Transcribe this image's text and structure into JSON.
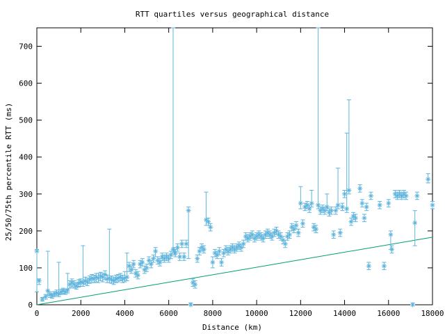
{
  "chart_data": {
    "type": "scatter",
    "title": "RTT quartiles versus geographical distance",
    "xlabel": "Distance (km)",
    "ylabel": "25/50/75th percentile RTT (ms)",
    "xlim": [
      0,
      18000
    ],
    "ylim": [
      0,
      750
    ],
    "x_ticks": [
      0,
      2000,
      4000,
      6000,
      8000,
      10000,
      12000,
      14000,
      16000,
      18000
    ],
    "y_ticks": [
      0,
      100,
      200,
      300,
      400,
      500,
      600,
      700
    ],
    "grid": false,
    "legend": "none",
    "colors": {
      "points": "#5fb4dd",
      "reference_line": "#009e73"
    },
    "reference_line": {
      "x": [
        0,
        18000
      ],
      "y": [
        0,
        183
      ]
    },
    "series": [
      {
        "marker": "star",
        "points": [
          [
            0,
            145,
            35,
            150
          ],
          [
            100,
            65,
            55,
            70
          ],
          [
            250,
            15,
            10,
            20
          ],
          [
            400,
            22,
            15,
            28
          ],
          [
            500,
            38,
            25,
            145
          ],
          [
            600,
            28,
            20,
            35
          ],
          [
            700,
            25,
            18,
            30
          ],
          [
            800,
            30,
            22,
            36
          ],
          [
            900,
            32,
            25,
            40
          ],
          [
            1000,
            30,
            22,
            115
          ],
          [
            1100,
            35,
            28,
            42
          ],
          [
            1200,
            38,
            30,
            45
          ],
          [
            1300,
            35,
            28,
            42
          ],
          [
            1400,
            40,
            32,
            85
          ],
          [
            1500,
            55,
            45,
            65
          ],
          [
            1600,
            60,
            48,
            70
          ],
          [
            1700,
            55,
            45,
            65
          ],
          [
            1800,
            50,
            42,
            60
          ],
          [
            1900,
            58,
            48,
            68
          ],
          [
            2000,
            62,
            50,
            70
          ],
          [
            2100,
            60,
            50,
            160
          ],
          [
            2200,
            65,
            55,
            75
          ],
          [
            2300,
            62,
            52,
            72
          ],
          [
            2400,
            68,
            58,
            78
          ],
          [
            2500,
            72,
            60,
            82
          ],
          [
            2600,
            70,
            60,
            80
          ],
          [
            2700,
            75,
            62,
            85
          ],
          [
            2800,
            72,
            60,
            85
          ],
          [
            2900,
            78,
            65,
            88
          ],
          [
            3000,
            75,
            62,
            85
          ],
          [
            3100,
            82,
            68,
            92
          ],
          [
            3200,
            70,
            60,
            80
          ],
          [
            3300,
            72,
            60,
            205
          ],
          [
            3400,
            68,
            58,
            78
          ],
          [
            3500,
            65,
            55,
            75
          ],
          [
            3600,
            70,
            60,
            80
          ],
          [
            3700,
            72,
            62,
            82
          ],
          [
            3800,
            75,
            65,
            85
          ],
          [
            3900,
            70,
            60,
            80
          ],
          [
            4000,
            72,
            62,
            90
          ],
          [
            4100,
            75,
            65,
            140
          ],
          [
            4200,
            105,
            90,
            115
          ],
          [
            4300,
            95,
            85,
            105
          ],
          [
            4400,
            110,
            100,
            120
          ],
          [
            4500,
            85,
            75,
            95
          ],
          [
            4600,
            80,
            70,
            90
          ],
          [
            4700,
            110,
            100,
            120
          ],
          [
            4800,
            115,
            105,
            125
          ],
          [
            4900,
            95,
            85,
            105
          ],
          [
            5000,
            100,
            90,
            110
          ],
          [
            5100,
            120,
            110,
            130
          ],
          [
            5200,
            110,
            100,
            120
          ],
          [
            5300,
            125,
            115,
            135
          ],
          [
            5400,
            145,
            130,
            155
          ],
          [
            5500,
            120,
            110,
            130
          ],
          [
            5600,
            115,
            105,
            125
          ],
          [
            5700,
            130,
            120,
            140
          ],
          [
            5800,
            125,
            115,
            135
          ],
          [
            5900,
            130,
            120,
            140
          ],
          [
            6000,
            125,
            115,
            135
          ],
          [
            6100,
            135,
            125,
            145
          ],
          [
            6200,
            150,
            140,
            750
          ],
          [
            6250,
            145,
            135,
            155
          ],
          [
            6300,
            140,
            130,
            150
          ],
          [
            6400,
            155,
            145,
            165
          ],
          [
            6500,
            130,
            120,
            140
          ],
          [
            6600,
            165,
            155,
            175
          ],
          [
            6700,
            130,
            120,
            140
          ],
          [
            6800,
            165,
            155,
            175
          ],
          [
            6900,
            255,
            125,
            265
          ],
          [
            7000,
            0,
            0,
            5
          ],
          [
            7100,
            60,
            50,
            70
          ],
          [
            7200,
            55,
            45,
            65
          ],
          [
            7300,
            125,
            115,
            135
          ],
          [
            7400,
            145,
            135,
            155
          ],
          [
            7500,
            155,
            145,
            165
          ],
          [
            7600,
            150,
            140,
            160
          ],
          [
            7700,
            230,
            215,
            305
          ],
          [
            7800,
            225,
            215,
            235
          ],
          [
            7900,
            210,
            200,
            220
          ],
          [
            8000,
            115,
            100,
            130
          ],
          [
            8100,
            140,
            130,
            150
          ],
          [
            8200,
            135,
            125,
            145
          ],
          [
            8300,
            145,
            135,
            155
          ],
          [
            8400,
            115,
            105,
            125
          ],
          [
            8500,
            140,
            130,
            150
          ],
          [
            8600,
            150,
            140,
            160
          ],
          [
            8700,
            145,
            135,
            155
          ],
          [
            8800,
            150,
            140,
            160
          ],
          [
            8900,
            155,
            145,
            165
          ],
          [
            9000,
            150,
            140,
            160
          ],
          [
            9100,
            155,
            145,
            165
          ],
          [
            9200,
            160,
            150,
            170
          ],
          [
            9300,
            155,
            145,
            165
          ],
          [
            9400,
            165,
            155,
            175
          ],
          [
            9500,
            185,
            175,
            195
          ],
          [
            9600,
            180,
            170,
            190
          ],
          [
            9700,
            185,
            175,
            195
          ],
          [
            9800,
            190,
            180,
            200
          ],
          [
            9900,
            180,
            170,
            190
          ],
          [
            10000,
            185,
            175,
            195
          ],
          [
            10100,
            190,
            180,
            200
          ],
          [
            10200,
            185,
            175,
            195
          ],
          [
            10300,
            180,
            170,
            190
          ],
          [
            10400,
            190,
            180,
            200
          ],
          [
            10500,
            195,
            185,
            205
          ],
          [
            10600,
            190,
            180,
            200
          ],
          [
            10700,
            185,
            175,
            195
          ],
          [
            10800,
            195,
            185,
            205
          ],
          [
            10900,
            200,
            190,
            210
          ],
          [
            11000,
            190,
            180,
            200
          ],
          [
            11100,
            185,
            175,
            195
          ],
          [
            11200,
            175,
            165,
            185
          ],
          [
            11300,
            165,
            155,
            175
          ],
          [
            11400,
            185,
            175,
            195
          ],
          [
            11500,
            190,
            180,
            200
          ],
          [
            11600,
            210,
            200,
            220
          ],
          [
            11700,
            205,
            195,
            215
          ],
          [
            11800,
            215,
            205,
            225
          ],
          [
            11900,
            195,
            185,
            205
          ],
          [
            12000,
            275,
            260,
            320
          ],
          [
            12100,
            220,
            210,
            230
          ],
          [
            12200,
            265,
            255,
            275
          ],
          [
            12300,
            270,
            260,
            280
          ],
          [
            12400,
            260,
            250,
            270
          ],
          [
            12500,
            275,
            265,
            310
          ],
          [
            12600,
            210,
            200,
            220
          ],
          [
            12700,
            205,
            195,
            215
          ],
          [
            12800,
            270,
            260,
            750
          ],
          [
            12900,
            255,
            245,
            265
          ],
          [
            13000,
            260,
            250,
            270
          ],
          [
            13100,
            255,
            245,
            265
          ],
          [
            13200,
            265,
            255,
            300
          ],
          [
            13300,
            250,
            240,
            260
          ],
          [
            13400,
            255,
            245,
            265
          ],
          [
            13500,
            190,
            180,
            200
          ],
          [
            13600,
            255,
            245,
            265
          ],
          [
            13700,
            270,
            260,
            370
          ],
          [
            13800,
            195,
            185,
            205
          ],
          [
            13900,
            265,
            255,
            275
          ],
          [
            14000,
            300,
            290,
            310
          ],
          [
            14100,
            260,
            250,
            465
          ],
          [
            14200,
            310,
            300,
            555
          ],
          [
            14300,
            225,
            215,
            235
          ],
          [
            14400,
            240,
            230,
            250
          ],
          [
            14500,
            235,
            225,
            245
          ],
          [
            14700,
            315,
            305,
            325
          ],
          [
            14800,
            275,
            265,
            285
          ],
          [
            14900,
            235,
            225,
            245
          ],
          [
            15000,
            265,
            255,
            275
          ],
          [
            15100,
            105,
            95,
            115
          ],
          [
            15200,
            295,
            285,
            305
          ],
          [
            15600,
            270,
            260,
            280
          ],
          [
            15800,
            105,
            95,
            115
          ],
          [
            16000,
            275,
            265,
            285
          ],
          [
            16100,
            190,
            150,
            200
          ],
          [
            16150,
            150,
            140,
            160
          ],
          [
            16300,
            300,
            290,
            310
          ],
          [
            16400,
            295,
            285,
            305
          ],
          [
            16500,
            300,
            290,
            310
          ],
          [
            16600,
            295,
            285,
            305
          ],
          [
            16700,
            300,
            290,
            310
          ],
          [
            16800,
            295,
            285,
            305
          ],
          [
            17100,
            0,
            0,
            5
          ],
          [
            17200,
            222,
            160,
            255
          ],
          [
            17300,
            295,
            285,
            305
          ],
          [
            17800,
            340,
            330,
            355
          ],
          [
            18000,
            270,
            260,
            280
          ]
        ]
      }
    ]
  }
}
